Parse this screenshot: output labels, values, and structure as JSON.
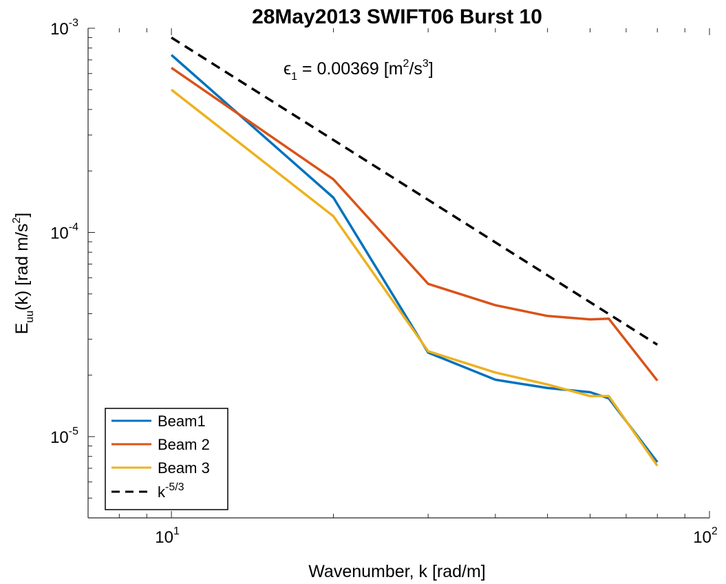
{
  "chart_data": {
    "type": "line",
    "title": "28May2013 SWIFT06 Burst 10",
    "xlabel": "Wavenumber, k [rad/m]",
    "ylabel": {
      "base": "E",
      "sub": "uu",
      "mid": "(k) [rad m/s",
      "sup": "2",
      "end": "]"
    },
    "x_scale": "log",
    "y_scale": "log",
    "xlim": [
      7,
      100
    ],
    "ylim": [
      4e-06,
      0.001
    ],
    "x_ticks": [
      {
        "value": 10,
        "base": "10",
        "exp": "1"
      },
      {
        "value": 100,
        "base": "10",
        "exp": "2"
      }
    ],
    "y_ticks": [
      {
        "value": 1e-05,
        "base": "10",
        "exp": "-5"
      },
      {
        "value": 0.0001,
        "base": "10",
        "exp": "-4"
      },
      {
        "value": 0.001,
        "base": "10",
        "exp": "-3"
      }
    ],
    "grid": false,
    "legend_position": "bottom-left",
    "annotation": {
      "pre": "ϵ",
      "sub": "1",
      "mid": " = 0.00369 [m",
      "sup1": "2",
      "mid2": "/s",
      "sup2": "3",
      "end": "]"
    },
    "series": [
      {
        "name": "Beam1",
        "color": "#0072BD",
        "dash": "solid",
        "x": [
          10,
          20,
          30,
          40,
          50,
          60,
          65,
          80
        ],
        "y": [
          0.00074,
          0.000148,
          2.58e-05,
          1.9e-05,
          1.73e-05,
          1.65e-05,
          1.54e-05,
          7.5e-06
        ]
      },
      {
        "name": "Beam 2",
        "color": "#D95319",
        "dash": "solid",
        "x": [
          10,
          20,
          30,
          40,
          50,
          60,
          65,
          80
        ],
        "y": [
          0.00064,
          0.000182,
          5.6e-05,
          4.4e-05,
          3.9e-05,
          3.75e-05,
          3.78e-05,
          1.88e-05
        ]
      },
      {
        "name": "Beam 3",
        "color": "#EDB120",
        "dash": "solid",
        "x": [
          10,
          20,
          30,
          40,
          50,
          60,
          65,
          80
        ],
        "y": [
          0.0005,
          0.00012,
          2.62e-05,
          2.06e-05,
          1.8e-05,
          1.58e-05,
          1.58e-05,
          7.2e-06
        ]
      },
      {
        "name": "k^-5/3",
        "legend_base": "k",
        "legend_sup": "-5/3",
        "color": "#000000",
        "dash": "dashed",
        "x": [
          10,
          80
        ],
        "y": [
          0.0009,
          2.82e-05
        ]
      }
    ]
  }
}
